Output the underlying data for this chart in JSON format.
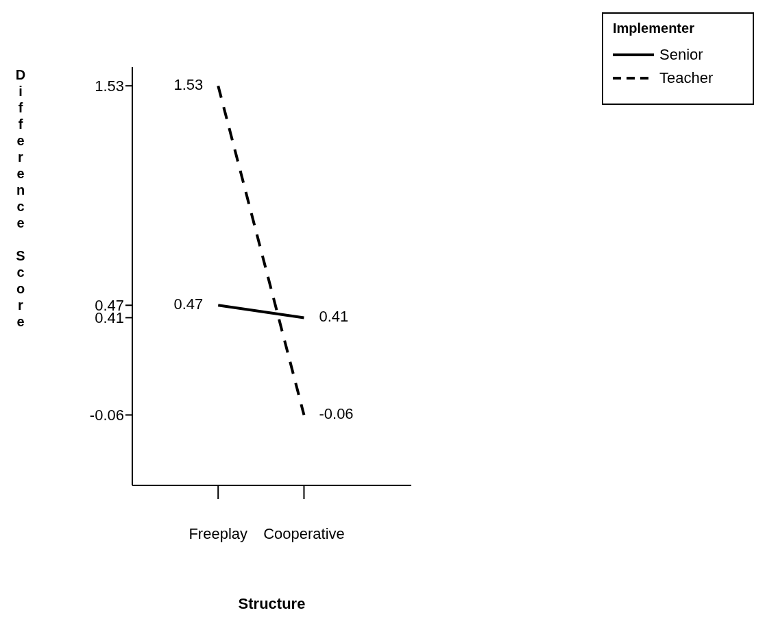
{
  "chart_data": {
    "type": "line",
    "xlabel": "Structure",
    "ylabel": "Difference Score",
    "legend_title": "Implementer",
    "categories": [
      "Freeplay",
      "Cooperative"
    ],
    "series": [
      {
        "name": "Senior",
        "color": "#000000",
        "line_style": "solid",
        "values": [
          0.47,
          0.41
        ]
      },
      {
        "name": "Teacher",
        "color": "#000000",
        "line_style": "dashed",
        "values": [
          1.53,
          -0.06
        ]
      }
    ],
    "ylim": [
      -0.4,
      1.62
    ],
    "yticks": [
      -0.06,
      0.41,
      0.47,
      1.53
    ],
    "data_labels": true,
    "legend": "top right",
    "grid": false,
    "marker": "none"
  }
}
